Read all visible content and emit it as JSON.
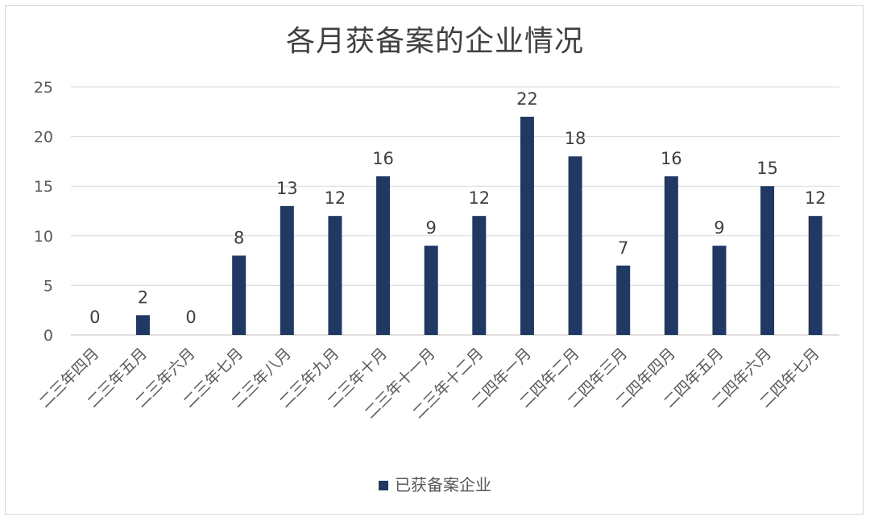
{
  "chart_data": {
    "type": "bar",
    "title": "各月获备案的企业情况",
    "categories": [
      "二三年四月",
      "二三年五月",
      "二三年六月",
      "二三年七月",
      "二三年八月",
      "二三年九月",
      "二三年十月",
      "二三年十一月",
      "二三年十二月",
      "二四年一月",
      "二四年二月",
      "二四年三月",
      "二四年四月",
      "二四年五月",
      "二四年六月",
      "二四年七月"
    ],
    "series": [
      {
        "name": "已获备案企业",
        "values": [
          0,
          2,
          0,
          8,
          13,
          12,
          16,
          9,
          12,
          22,
          18,
          7,
          16,
          9,
          15,
          12
        ],
        "color": "#1f3864"
      }
    ],
    "y_ticks": [
      "0",
      "5",
      "10",
      "15",
      "20",
      "25"
    ],
    "ylim": [
      0,
      25
    ],
    "grid": true,
    "legend_position": "bottom",
    "data_labels": true,
    "xlabel": "",
    "ylabel": ""
  }
}
